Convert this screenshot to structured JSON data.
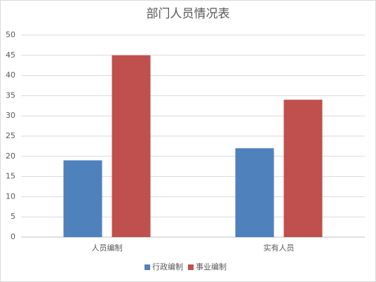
{
  "chart_data": {
    "type": "bar",
    "title": "部门人员情况表",
    "categories": [
      "人员编制",
      "实有人员"
    ],
    "series": [
      {
        "name": "行政编制",
        "color": "#4f81bd",
        "values": [
          19,
          22
        ]
      },
      {
        "name": "事业编制",
        "color": "#c0504d",
        "values": [
          45,
          34
        ]
      }
    ],
    "ylim": [
      0,
      50
    ],
    "yticks": [
      0,
      5,
      10,
      15,
      20,
      25,
      30,
      35,
      40,
      45,
      50
    ],
    "grid": true,
    "legend": "bottom"
  }
}
